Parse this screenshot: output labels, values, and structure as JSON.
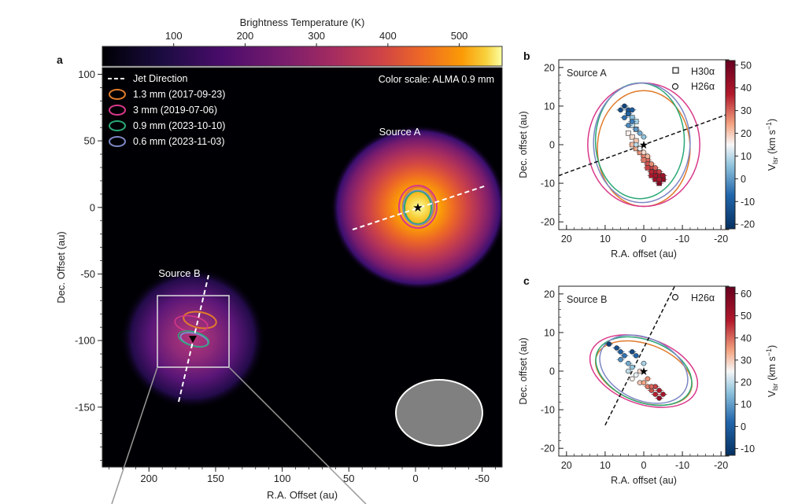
{
  "chart_data": [
    {
      "type": "heatmap",
      "panel_label": "a",
      "colorbar": {
        "title": "Brightness Temperature (K)",
        "ticks": [
          "100",
          "200",
          "300",
          "400",
          "500"
        ],
        "range": [
          0,
          560
        ],
        "colormap": "inferno"
      },
      "xlabel": "R.A. Offset (au)",
      "ylabel": "Dec. Offset (au)",
      "xlim": [
        235,
        -65
      ],
      "ylim": [
        -195,
        105
      ],
      "xticks": [
        "200",
        "150",
        "100",
        "50",
        "0",
        "-50"
      ],
      "yticks": [
        "100",
        "50",
        "0",
        "-50",
        "-100",
        "-150"
      ],
      "corner_note": "Color scale: ALMA 0.9 mm",
      "legend": [
        {
          "label": "Jet Direction",
          "style": "dashed",
          "color": "#ffffff"
        },
        {
          "label": "1.3 mm (2017-09-23)",
          "style": "ellipse",
          "color": "#e07b2a"
        },
        {
          "label": "3 mm (2019-07-06)",
          "style": "ellipse",
          "color": "#d9388a"
        },
        {
          "label": "0.9 mm (2023-10-10)",
          "style": "ellipse",
          "color": "#2aa876"
        },
        {
          "label": "0.6 mm (2023-11-03)",
          "style": "ellipse",
          "color": "#7d87c4"
        }
      ],
      "sources": [
        {
          "label": "Source A",
          "x": 0,
          "y": 0,
          "peak_K": 560,
          "marker": "star"
        },
        {
          "label": "Source B",
          "x": 168,
          "y": -97,
          "peak_K": 300,
          "marker": "triangle-down"
        }
      ],
      "beam_color": "#808080",
      "zoom_box": {
        "x": [
          145,
          198
        ],
        "y": [
          -119,
          -65
        ]
      }
    },
    {
      "type": "scatter",
      "panel_label": "b",
      "annotation": "Source A",
      "xlabel": "R.A. offset (au)",
      "ylabel": "Dec. offset (au)",
      "xlim": [
        22,
        -22
      ],
      "ylim": [
        -22,
        22
      ],
      "xticks": [
        "20",
        "10",
        "0",
        "-10",
        "-20"
      ],
      "yticks": [
        "20",
        "10",
        "0",
        "-10",
        "-20"
      ],
      "legend": [
        {
          "label": "H30α",
          "marker": "square"
        },
        {
          "label": "H26α",
          "marker": "circle"
        }
      ],
      "colorbar": {
        "label": "V_lsr (km s⁻¹)",
        "ticks": [
          "50",
          "40",
          "30",
          "20",
          "10",
          "0",
          "-10",
          "-20"
        ],
        "range": [
          -22,
          52
        ],
        "colormap": "RdBu_r"
      },
      "series": [
        {
          "name": "H30α",
          "marker": "square",
          "points": [
            [
              4,
              8,
              3
            ],
            [
              3,
              7,
              5
            ],
            [
              2,
              6,
              8
            ],
            [
              3,
              5,
              10
            ],
            [
              2,
              4,
              13
            ],
            [
              4,
              3,
              16
            ],
            [
              3,
              2,
              18
            ],
            [
              2,
              1,
              20
            ],
            [
              3,
              0,
              22
            ],
            [
              2,
              -1,
              24
            ],
            [
              1,
              -2,
              26
            ],
            [
              0,
              -3,
              28
            ],
            [
              -1,
              -4,
              30
            ],
            [
              -1,
              -5,
              32
            ],
            [
              -2,
              -6,
              34
            ],
            [
              -2,
              -7,
              36
            ],
            [
              -3,
              -7,
              38
            ],
            [
              -4,
              -8,
              40
            ],
            [
              -3,
              -9,
              42
            ],
            [
              -5,
              -9,
              44
            ],
            [
              -4,
              -10,
              46
            ],
            [
              -2,
              -8,
              38
            ],
            [
              -1,
              -6,
              33
            ],
            [
              0,
              -4,
              28
            ],
            [
              1,
              -1,
              24
            ]
          ]
        },
        {
          "name": "H26α",
          "marker": "circle",
          "points": [
            [
              6,
              9,
              -14
            ],
            [
              5,
              10,
              -16
            ],
            [
              4,
              9,
              -12
            ],
            [
              3,
              9,
              -10
            ],
            [
              4,
              8,
              -8
            ],
            [
              5,
              7,
              -6
            ],
            [
              3,
              6,
              -4
            ],
            [
              4,
              5,
              -2
            ],
            [
              2,
              4,
              0
            ],
            [
              1,
              3,
              3
            ],
            [
              0,
              2,
              6
            ],
            [
              2,
              0,
              10
            ],
            [
              1,
              -1,
              14
            ],
            [
              0,
              -2,
              18
            ],
            [
              -1,
              -3,
              22
            ],
            [
              -2,
              -5,
              26
            ],
            [
              -3,
              -6,
              30
            ],
            [
              -4,
              -7,
              34
            ],
            [
              -4,
              -9,
              38
            ],
            [
              -5,
              -8,
              41
            ],
            [
              -2,
              -7,
              36
            ],
            [
              -3,
              -8,
              40
            ]
          ]
        }
      ],
      "jet_line": {
        "from": [
          22,
          -8
        ],
        "to": [
          -22,
          8
        ]
      },
      "marker_star": [
        0,
        0
      ],
      "ellipses_color": [
        "#e07b2a",
        "#d9388a",
        "#2aa876",
        "#7d87c4"
      ]
    },
    {
      "type": "scatter",
      "panel_label": "c",
      "annotation": "Source B",
      "xlabel": "R.A. offset (au)",
      "ylabel": "Dec. offset (au)",
      "xlim": [
        22,
        -22
      ],
      "ylim": [
        -22,
        22
      ],
      "xticks": [
        "20",
        "10",
        "0",
        "-10",
        "-20"
      ],
      "yticks": [
        "20",
        "10",
        "0",
        "-10",
        "-20"
      ],
      "legend": [
        {
          "label": "H26α",
          "marker": "circle"
        }
      ],
      "colorbar": {
        "label": "V_lsr (km s⁻¹)",
        "ticks": [
          "60",
          "50",
          "40",
          "30",
          "20",
          "10",
          "0",
          "-10"
        ],
        "range": [
          -13,
          63
        ],
        "colormap": "RdBu_r"
      },
      "series": [
        {
          "name": "H26α",
          "marker": "circle",
          "points": [
            [
              9,
              7,
              -8
            ],
            [
              7,
              6,
              -4
            ],
            [
              6,
              5,
              0
            ],
            [
              5,
              4,
              4
            ],
            [
              6,
              3,
              8
            ],
            [
              4,
              2,
              12
            ],
            [
              3,
              1,
              16
            ],
            [
              4,
              0,
              20
            ],
            [
              2,
              -1,
              24
            ],
            [
              3,
              -2,
              26
            ],
            [
              1,
              -3,
              30
            ],
            [
              0,
              -3,
              34
            ],
            [
              -1,
              -4,
              38
            ],
            [
              -2,
              -5,
              42
            ],
            [
              -3,
              -4,
              44
            ],
            [
              -4,
              -5,
              48
            ],
            [
              -5,
              -6,
              50
            ],
            [
              -4,
              -7,
              54
            ],
            [
              -3,
              -6,
              47
            ],
            [
              -2,
              -4,
              40
            ],
            [
              2,
              4,
              2
            ],
            [
              0,
              2,
              18
            ],
            [
              1,
              0,
              28
            ],
            [
              -1,
              -2,
              36
            ],
            [
              3,
              5,
              -6
            ]
          ]
        }
      ],
      "jet_line": {
        "from": [
          10,
          -14
        ],
        "to": [
          -8,
          22
        ]
      },
      "marker_star": [
        0,
        0
      ],
      "ellipses_color": [
        "#e07b2a",
        "#d9388a",
        "#2aa876",
        "#7d87c4"
      ]
    }
  ]
}
